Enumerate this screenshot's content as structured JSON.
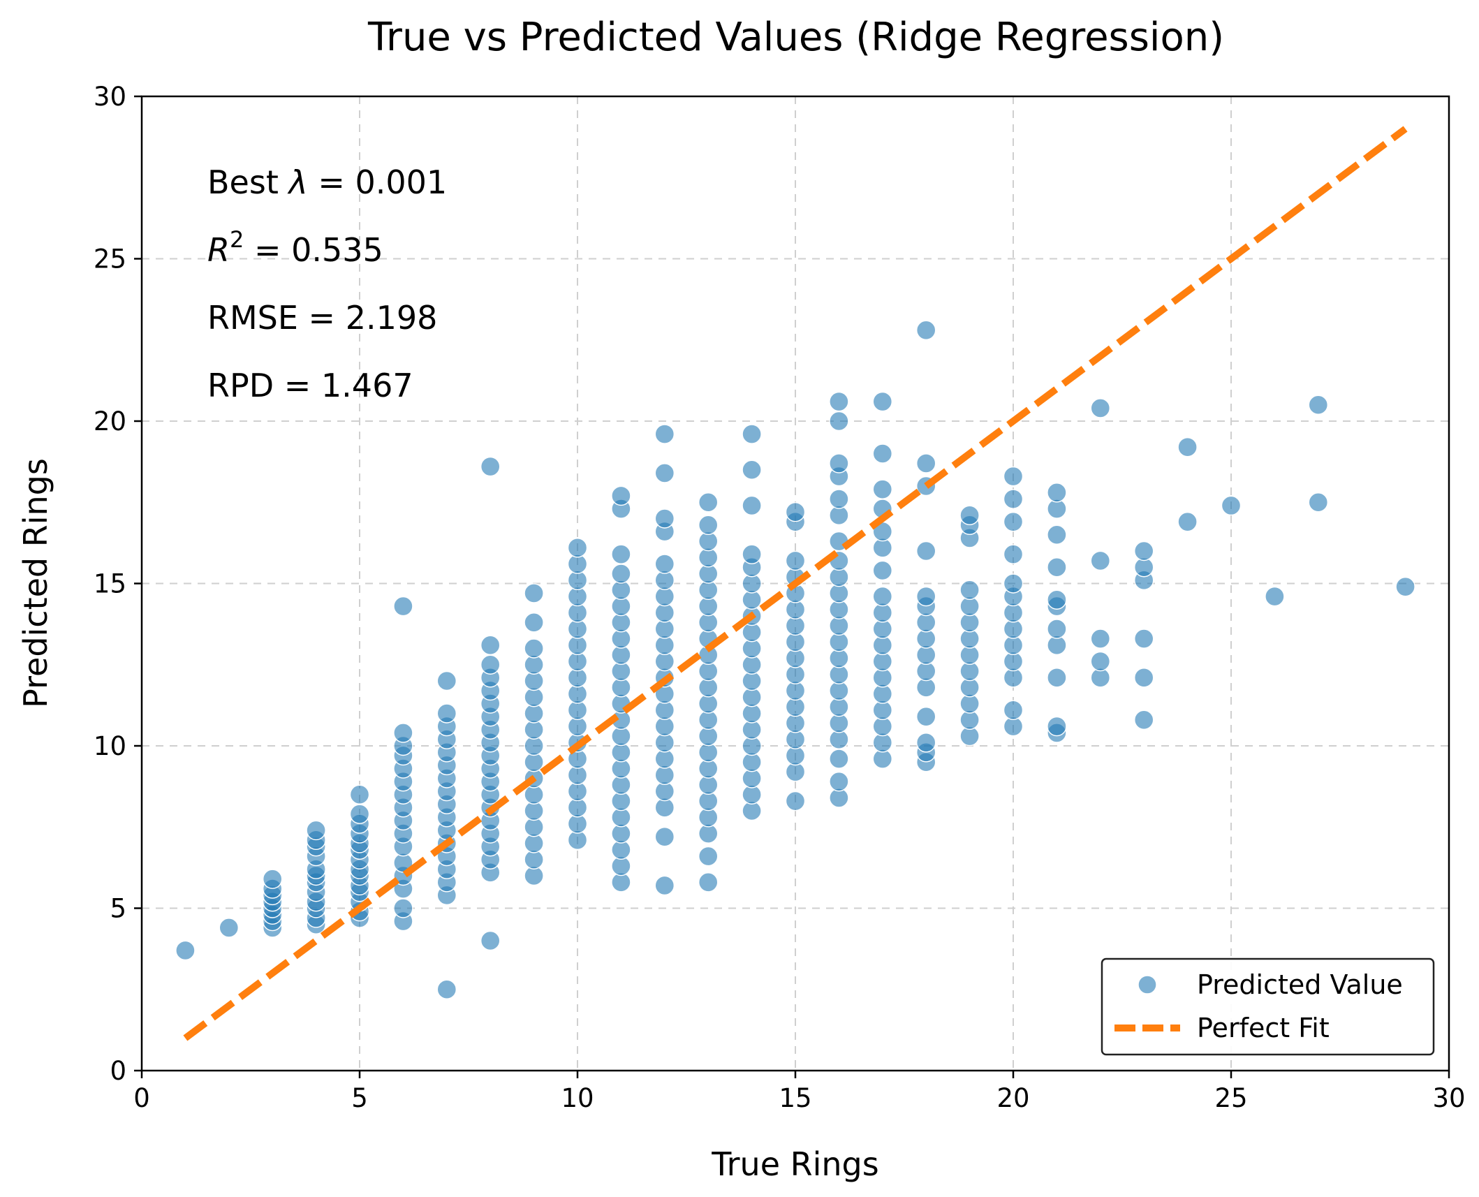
{
  "chart_data": {
    "type": "scatter",
    "title": "True vs Predicted Values (Ridge Regression)",
    "xlabel": "True Rings",
    "ylabel": "Predicted Rings",
    "xlim": [
      0,
      30
    ],
    "ylim": [
      0,
      30
    ],
    "xticks": [
      "0",
      "5",
      "10",
      "15",
      "20",
      "25",
      "30"
    ],
    "yticks": [
      "0",
      "5",
      "10",
      "15",
      "20",
      "25",
      "30"
    ],
    "grid": true,
    "legend": {
      "placement": "lower-right",
      "entries": [
        "Predicted Value",
        "Perfect Fit"
      ]
    },
    "annotations": {
      "best_lambda": {
        "prefix": "Best ",
        "symbol": "λ",
        "suffix": " = 0.001"
      },
      "r2": {
        "symbol": "R",
        "sup": "2",
        "suffix": " = 0.535"
      },
      "rmse": "RMSE = 2.198",
      "rpd": "RPD = 1.467"
    },
    "series": [
      {
        "name": "Predicted Value",
        "kind": "scatter",
        "color": "#1f77b4",
        "points": [
          {
            "true": 1,
            "predicted": [
              3.7
            ]
          },
          {
            "true": 2,
            "predicted": [
              4.4
            ]
          },
          {
            "true": 3,
            "predicted": [
              4.4,
              4.6,
              4.8,
              5.0,
              5.2,
              5.4,
              5.6,
              5.9
            ]
          },
          {
            "true": 4,
            "predicted": [
              4.5,
              4.7,
              5.0,
              5.2,
              5.5,
              5.8,
              6.0,
              6.2,
              6.6,
              6.9,
              7.1,
              7.4
            ]
          },
          {
            "true": 5,
            "predicted": [
              4.7,
              4.9,
              5.2,
              5.5,
              5.7,
              6.0,
              6.2,
              6.5,
              6.8,
              7.0,
              7.3,
              7.6,
              7.9,
              8.5
            ]
          },
          {
            "true": 6,
            "predicted": [
              4.6,
              5.0,
              5.6,
              6.0,
              6.4,
              6.9,
              7.3,
              7.7,
              8.1,
              8.5,
              8.9,
              9.3,
              9.7,
              10.0,
              10.4,
              14.3
            ]
          },
          {
            "true": 7,
            "predicted": [
              2.5,
              5.4,
              5.8,
              6.2,
              6.6,
              7.0,
              7.4,
              7.8,
              8.2,
              8.6,
              9.0,
              9.4,
              9.8,
              10.2,
              10.6,
              11.0,
              12.0
            ]
          },
          {
            "true": 8,
            "predicted": [
              4.0,
              6.1,
              6.5,
              6.9,
              7.3,
              7.7,
              8.1,
              8.5,
              8.9,
              9.3,
              9.7,
              10.1,
              10.5,
              10.9,
              11.3,
              11.7,
              12.1,
              12.5,
              13.1,
              18.6
            ]
          },
          {
            "true": 9,
            "predicted": [
              6.0,
              6.5,
              7.0,
              7.5,
              8.0,
              8.5,
              9.0,
              9.5,
              10.0,
              10.5,
              11.0,
              11.5,
              12.0,
              12.5,
              13.0,
              13.8,
              14.7
            ]
          },
          {
            "true": 10,
            "predicted": [
              7.1,
              7.6,
              8.1,
              8.6,
              9.1,
              9.6,
              10.1,
              10.6,
              11.1,
              11.6,
              12.1,
              12.6,
              13.1,
              13.6,
              14.1,
              14.6,
              15.1,
              15.6,
              16.1
            ]
          },
          {
            "true": 11,
            "predicted": [
              5.8,
              6.3,
              6.8,
              7.3,
              7.8,
              8.3,
              8.8,
              9.3,
              9.8,
              10.3,
              10.8,
              11.3,
              11.8,
              12.3,
              12.8,
              13.3,
              13.8,
              14.3,
              14.8,
              15.3,
              15.9,
              17.3,
              17.7
            ]
          },
          {
            "true": 12,
            "predicted": [
              5.7,
              7.2,
              8.1,
              8.6,
              9.1,
              9.6,
              10.1,
              10.6,
              11.1,
              11.6,
              12.1,
              12.6,
              13.1,
              13.6,
              14.1,
              14.6,
              15.1,
              15.6,
              16.6,
              17.0,
              18.4,
              19.6
            ]
          },
          {
            "true": 13,
            "predicted": [
              5.8,
              6.6,
              7.3,
              7.8,
              8.3,
              8.8,
              9.3,
              9.8,
              10.3,
              10.8,
              11.3,
              11.8,
              12.3,
              12.8,
              13.3,
              13.8,
              14.3,
              14.8,
              15.3,
              15.8,
              16.3,
              16.8,
              17.5
            ]
          },
          {
            "true": 14,
            "predicted": [
              8.0,
              8.5,
              9.0,
              9.5,
              10.0,
              10.5,
              11.0,
              11.5,
              12.0,
              12.5,
              13.0,
              13.5,
              14.0,
              14.5,
              15.0,
              15.5,
              15.9,
              17.4,
              18.5,
              19.6
            ]
          },
          {
            "true": 15,
            "predicted": [
              8.3,
              9.2,
              9.7,
              10.2,
              10.7,
              11.2,
              11.7,
              12.2,
              12.7,
              13.2,
              13.7,
              14.2,
              14.7,
              15.2,
              15.7,
              16.9,
              17.2
            ]
          },
          {
            "true": 16,
            "predicted": [
              8.4,
              8.9,
              9.6,
              10.2,
              10.7,
              11.2,
              11.7,
              12.2,
              12.7,
              13.2,
              13.7,
              14.2,
              14.7,
              15.2,
              15.7,
              16.3,
              17.1,
              17.6,
              18.3,
              18.7,
              20.0,
              20.6
            ]
          },
          {
            "true": 17,
            "predicted": [
              9.6,
              10.1,
              10.6,
              11.1,
              11.6,
              12.1,
              12.6,
              13.1,
              13.6,
              14.1,
              14.6,
              15.4,
              16.1,
              16.6,
              17.3,
              17.9,
              19.0,
              20.6
            ]
          },
          {
            "true": 18,
            "predicted": [
              9.5,
              9.8,
              10.1,
              10.9,
              11.8,
              12.3,
              12.8,
              13.3,
              13.8,
              14.3,
              14.6,
              16.0,
              18.0,
              18.7,
              22.8
            ]
          },
          {
            "true": 19,
            "predicted": [
              10.3,
              10.8,
              11.3,
              11.8,
              12.3,
              12.8,
              13.3,
              13.8,
              14.3,
              14.8,
              16.4,
              16.8,
              17.1
            ]
          },
          {
            "true": 20,
            "predicted": [
              10.6,
              11.1,
              12.1,
              12.6,
              13.1,
              13.6,
              14.1,
              14.6,
              15.0,
              15.9,
              16.9,
              17.6,
              18.3
            ]
          },
          {
            "true": 21,
            "predicted": [
              10.4,
              10.6,
              12.1,
              13.1,
              13.6,
              14.3,
              14.5,
              15.5,
              16.5,
              17.3,
              17.8
            ]
          },
          {
            "true": 22,
            "predicted": [
              12.1,
              12.6,
              13.3,
              15.7,
              20.4
            ]
          },
          {
            "true": 23,
            "predicted": [
              10.8,
              12.1,
              13.3,
              15.1,
              15.5,
              16.0
            ]
          },
          {
            "true": 24,
            "predicted": [
              16.9,
              19.2
            ]
          },
          {
            "true": 25,
            "predicted": [
              17.4
            ]
          },
          {
            "true": 26,
            "predicted": [
              14.6
            ]
          },
          {
            "true": 27,
            "predicted": [
              17.5,
              20.5
            ]
          },
          {
            "true": 29,
            "predicted": [
              14.9
            ]
          }
        ]
      },
      {
        "name": "Perfect Fit",
        "kind": "line",
        "style": "dashed",
        "color": "#ff7f0e",
        "x": [
          1,
          29
        ],
        "y": [
          1,
          29
        ]
      }
    ]
  }
}
